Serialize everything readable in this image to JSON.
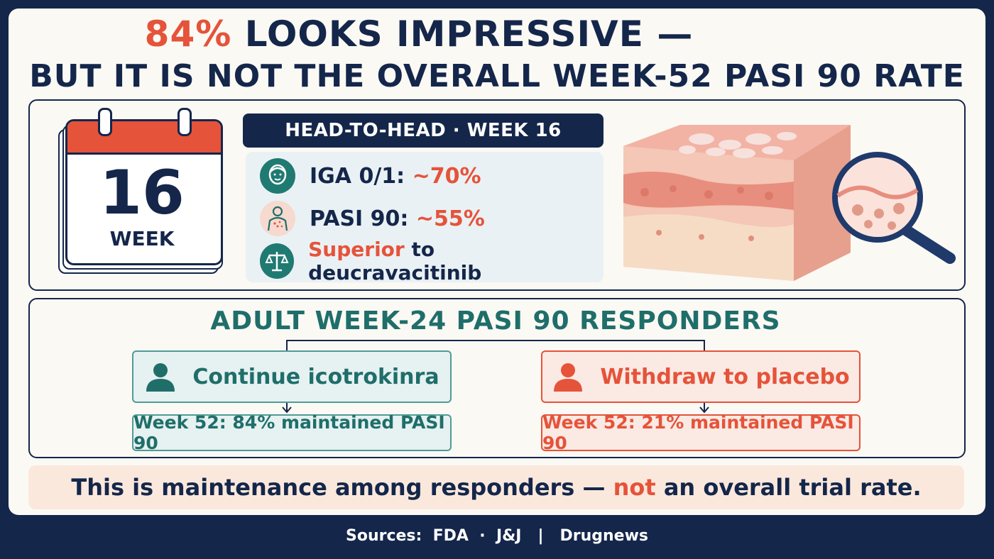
{
  "title": {
    "line1_accent": "84%",
    "line1_rest": " LOOKS IMPRESSIVE —",
    "line2": "BUT IT IS NOT THE OVERALL WEEK-52 PASI 90 RATE"
  },
  "calendar": {
    "number": "16",
    "word": "WEEK",
    "icon": "calendar-icon"
  },
  "head_to_head": {
    "header": "HEAD-TO-HEAD · WEEK 16",
    "rows": [
      {
        "icon": "face-icon",
        "label": "IGA 0/1: ",
        "value": "~70%"
      },
      {
        "icon": "body-icon",
        "label": "PASI 90: ",
        "value": "~55%"
      },
      {
        "icon": "scales-icon",
        "accent": "Superior",
        "label": " to deucravacitinib"
      }
    ]
  },
  "illustration": {
    "icon": "skin-cross-section-magnifier-icon"
  },
  "responders": {
    "title": "ADULT WEEK-24 PASI 90 RESPONDERS",
    "arms": [
      {
        "icon": "person-icon",
        "label": "Continue icotrokinra",
        "result": "Week 52: 84% maintained PASI 90",
        "color": "#1f6e6a"
      },
      {
        "icon": "person-icon",
        "label": "Withdraw to placebo",
        "result": "Week 52: 21% maintained PASI 90",
        "color": "#e5533a"
      }
    ]
  },
  "note": {
    "before": "This is maintenance among responders — ",
    "accent": "not",
    "after": " an overall trial rate."
  },
  "sources": "Sources:  FDA  ·  J&J   |   Drugnews",
  "colors": {
    "navy": "#14264a",
    "orange": "#e5533a",
    "teal": "#1f6e6a",
    "cream": "#fbf9f4"
  }
}
